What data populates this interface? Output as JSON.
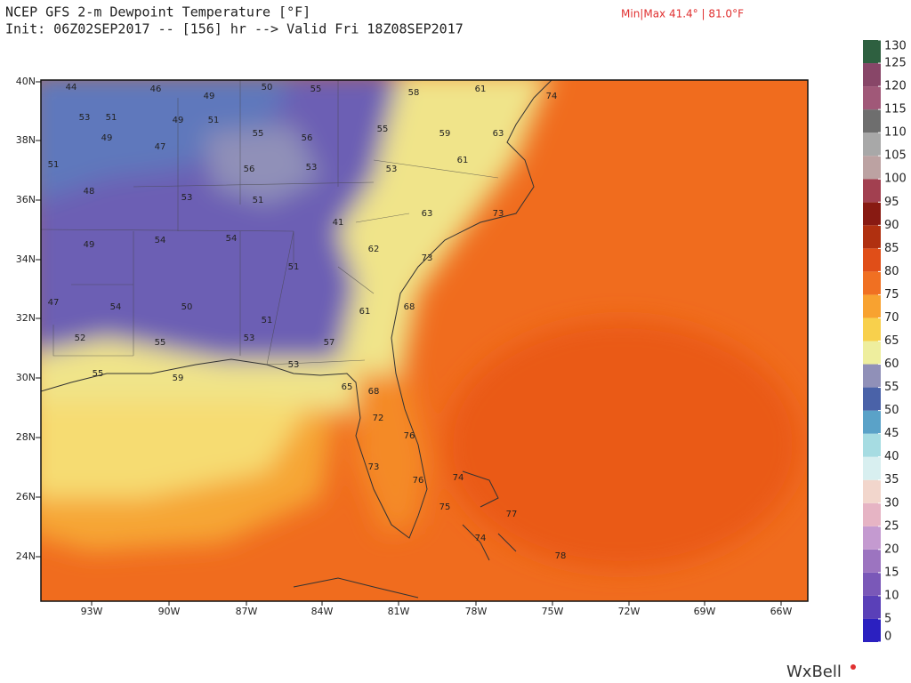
{
  "header": {
    "title": "NCEP GFS 2-m Dewpoint Temperature [°F]",
    "subtitle": "Init: 06Z02SEP2017 -- [156] hr --> Valid Fri 18Z08SEP2017",
    "minmax": "Min|Max 41.4° | 81.0°F"
  },
  "map": {
    "lat_labels": [
      "40N",
      "38N",
      "36N",
      "34N",
      "32N",
      "30N",
      "28N",
      "26N",
      "24N"
    ],
    "lon_labels": [
      "93W",
      "90W",
      "87W",
      "84W",
      "81W",
      "78W",
      "75W",
      "72W",
      "69W",
      "66W"
    ],
    "stations": [
      44,
      46,
      49,
      50,
      55,
      58,
      61,
      74,
      53,
      51,
      49,
      51,
      55,
      56,
      55,
      59,
      63,
      49,
      47,
      56,
      53,
      53,
      61,
      51,
      48,
      53,
      51,
      41,
      63,
      73,
      49,
      54,
      54,
      51,
      62,
      73,
      47,
      54,
      50,
      51,
      61,
      68,
      52,
      55,
      53,
      57,
      55,
      59,
      53,
      65,
      68,
      72,
      76,
      73,
      76,
      74,
      75,
      74,
      77,
      78
    ]
  },
  "colorbar": {
    "ticks": [
      0,
      5,
      10,
      15,
      20,
      25,
      30,
      35,
      40,
      45,
      50,
      55,
      60,
      65,
      70,
      75,
      80,
      85,
      90,
      95,
      100,
      105,
      110,
      115,
      120,
      125,
      130
    ],
    "colors": [
      "#2b20c0",
      "#5a40b8",
      "#7a58b8",
      "#9c74c0",
      "#c49ad0",
      "#e6b4c4",
      "#f2d6cc",
      "#d8eff0",
      "#a6dce2",
      "#5aa2c8",
      "#4a62a8",
      "#9090b8",
      "#eeee9e",
      "#f8d04c",
      "#f8a230",
      "#f07022",
      "#e04e18",
      "#b03010",
      "#881a12",
      "#a24050",
      "#bca2a2",
      "#a8a8a8",
      "#6e6e6e",
      "#a05878",
      "#884668",
      "#2e6040",
      "#20a060"
    ]
  },
  "footer": {
    "logo": "WxBell"
  }
}
